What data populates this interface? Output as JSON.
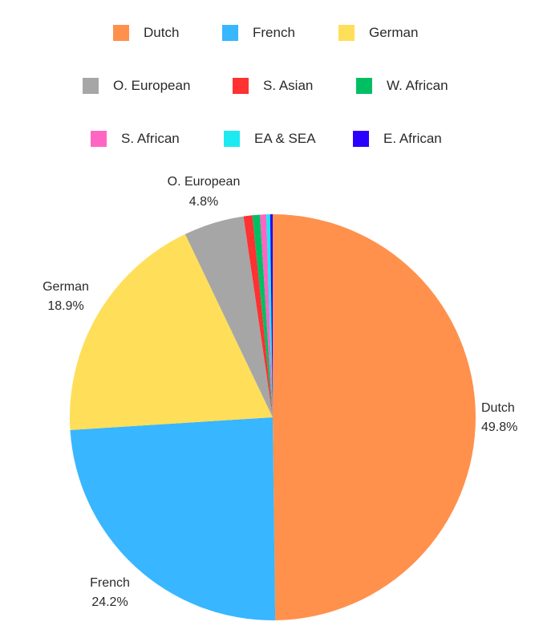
{
  "chart_data": {
    "type": "pie",
    "title": "",
    "legend_placement": "top",
    "series": [
      {
        "name": "Dutch",
        "value": 49.8,
        "color": "#FF914D",
        "label_text": "Dutch",
        "value_text": "49.8%"
      },
      {
        "name": "French",
        "value": 24.2,
        "color": "#38B6FF",
        "label_text": "French",
        "value_text": "24.2%"
      },
      {
        "name": "German",
        "value": 18.9,
        "color": "#FFDE59",
        "label_text": "German",
        "value_text": "18.9%"
      },
      {
        "name": "O. European",
        "value": 4.8,
        "color": "#A6A6A6",
        "label_text": "O. European",
        "value_text": "4.8%"
      },
      {
        "name": "S. Asian",
        "value": 0.7,
        "color": "#FF3131",
        "label_text": "",
        "value_text": ""
      },
      {
        "name": "W. African",
        "value": 0.6,
        "color": "#00BF63",
        "label_text": "",
        "value_text": ""
      },
      {
        "name": "S. African",
        "value": 0.5,
        "color": "#FF66C4",
        "label_text": "",
        "value_text": ""
      },
      {
        "name": "EA & SEA",
        "value": 0.3,
        "color": "#1CEAF0",
        "label_text": "",
        "value_text": ""
      },
      {
        "name": "E. African",
        "value": 0.2,
        "color": "#2A00FF",
        "label_text": "",
        "value_text": ""
      }
    ]
  }
}
